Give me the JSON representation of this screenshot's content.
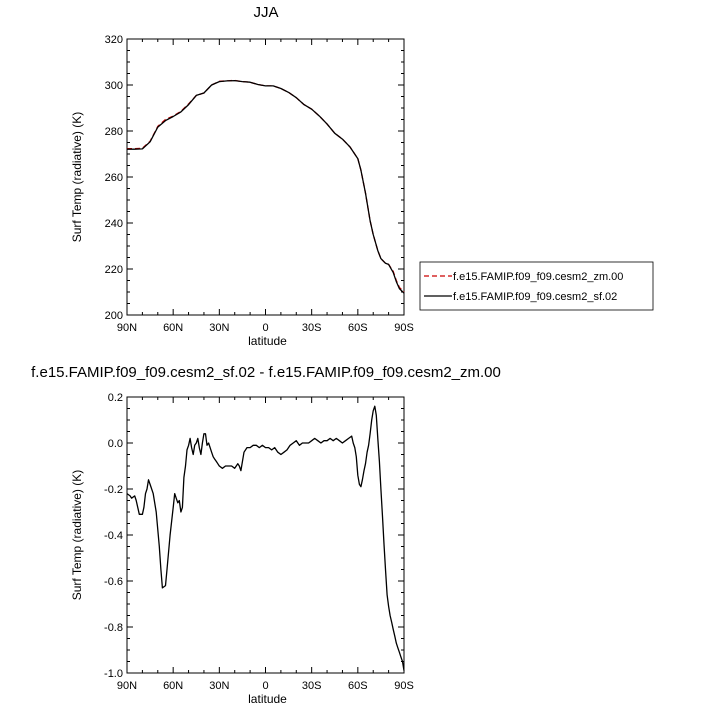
{
  "chart_data": [
    {
      "type": "line",
      "title": "JJA",
      "xlabel": "latitude",
      "ylabel": "Surf Temp (radiative) (K)",
      "xlim": [
        90,
        -90
      ],
      "ylim": [
        200,
        320
      ],
      "xtick_values": [
        90,
        60,
        30,
        0,
        -30,
        -60,
        -90
      ],
      "xtick_labels": [
        "90N",
        "60N",
        "30N",
        "0",
        "30S",
        "60S",
        "90S"
      ],
      "yticks": [
        200,
        220,
        240,
        260,
        280,
        300,
        320
      ],
      "grid": false,
      "legend": "right",
      "x": [
        90,
        85,
        80,
        75,
        70,
        65,
        60,
        55,
        50,
        45,
        40,
        35,
        30,
        25,
        20,
        15,
        10,
        5,
        0,
        -5,
        -10,
        -15,
        -20,
        -25,
        -30,
        -35,
        -40,
        -45,
        -50,
        -55,
        -60,
        -62,
        -65,
        -68,
        -70,
        -73,
        -75,
        -78,
        -80,
        -83,
        -85,
        -87,
        -90
      ],
      "series": [
        {
          "name": "f.e15.FAMIP.f09_f09.cesm2_zm.00",
          "color": "#cc0000",
          "dash": "dashed",
          "values": [
            272.3,
            272.3,
            272.5,
            275.5,
            282,
            285,
            286.5,
            288.5,
            291.8,
            295.5,
            296.5,
            300,
            301.6,
            301.8,
            302,
            301.5,
            301.2,
            300.2,
            299.6,
            299.6,
            298.5,
            296.8,
            294.5,
            291.5,
            289.5,
            286.5,
            283,
            279,
            276.5,
            273,
            268,
            263,
            253,
            241,
            235,
            228,
            224.5,
            222.5,
            222,
            219,
            215,
            212,
            210
          ]
        },
        {
          "name": "f.e15.FAMIP.f09_f09.cesm2_sf.02",
          "color": "#000000",
          "dash": "solid",
          "values": [
            272.1,
            272.1,
            272.2,
            275.3,
            281.7,
            284.5,
            286.3,
            288.3,
            291.5,
            295.5,
            296.5,
            300,
            301.5,
            301.8,
            301.9,
            301.5,
            301.2,
            300.2,
            299.6,
            299.6,
            298.5,
            296.8,
            294.5,
            291.5,
            289.5,
            286.5,
            283,
            279,
            276.5,
            273,
            268,
            263,
            253,
            241,
            235,
            228,
            224.5,
            222.5,
            222,
            218.5,
            214.5,
            211.5,
            209.5
          ]
        }
      ]
    },
    {
      "type": "line",
      "title": "f.e15.FAMIP.f09_f09.cesm2_sf.02 - f.e15.FAMIP.f09_f09.cesm2_zm.00",
      "xlabel": "latitude",
      "ylabel": "Surf Temp (radiative) (K)",
      "xlim": [
        90,
        -90
      ],
      "ylim": [
        -1.0,
        0.2
      ],
      "xtick_values": [
        90,
        60,
        30,
        0,
        -30,
        -60,
        -90
      ],
      "xtick_labels": [
        "90N",
        "60N",
        "30N",
        "0",
        "30S",
        "60S",
        "90S"
      ],
      "yticks": [
        -1.0,
        -0.8,
        -0.6,
        -0.4,
        -0.2,
        0.0,
        0.2
      ],
      "ytick_labels": [
        "-1.0",
        "-0.8",
        "-0.6",
        "-0.4",
        "-0.2",
        "0.0",
        "0.2"
      ],
      "grid": false,
      "x": [
        90,
        88,
        87,
        85,
        84,
        82,
        80,
        79,
        78,
        77,
        76,
        75,
        73,
        71,
        69,
        68,
        67,
        65,
        64,
        62,
        60,
        59,
        58,
        57,
        56,
        55,
        54,
        53,
        52,
        51,
        50,
        49,
        48,
        47,
        46,
        45,
        44,
        43,
        42,
        41,
        40,
        39,
        38,
        37,
        36,
        35,
        34,
        33,
        32,
        31,
        30,
        28,
        26,
        24,
        22,
        20,
        18,
        17,
        16,
        14,
        12,
        10,
        8,
        6,
        4,
        2,
        0,
        -2,
        -4,
        -6,
        -8,
        -10,
        -12,
        -14,
        -16,
        -18,
        -20,
        -22,
        -24,
        -26,
        -28,
        -30,
        -32,
        -34,
        -36,
        -38,
        -40,
        -42,
        -44,
        -46,
        -48,
        -50,
        -52,
        -54,
        -56,
        -57,
        -58,
        -59,
        -60,
        -61,
        -62,
        -63,
        -64,
        -65,
        -66,
        -67,
        -68,
        -69,
        -70,
        -71,
        -72,
        -73,
        -74,
        -75,
        -76,
        -77,
        -78,
        -79,
        -80,
        -81,
        -82,
        -83,
        -84,
        -85,
        -86,
        -87,
        -88,
        -89,
        -90
      ],
      "series": [
        {
          "name": "",
          "color": "#000000",
          "dash": "solid",
          "values": [
            -0.22,
            -0.23,
            -0.24,
            -0.23,
            -0.25,
            -0.31,
            -0.31,
            -0.28,
            -0.22,
            -0.2,
            -0.16,
            -0.18,
            -0.22,
            -0.3,
            -0.45,
            -0.55,
            -0.63,
            -0.62,
            -0.55,
            -0.4,
            -0.28,
            -0.22,
            -0.24,
            -0.26,
            -0.25,
            -0.3,
            -0.28,
            -0.15,
            -0.1,
            -0.03,
            -0.01,
            0.02,
            -0.02,
            -0.05,
            -0.01,
            0.0,
            0.02,
            -0.02,
            -0.05,
            0.0,
            0.04,
            0.04,
            -0.01,
            0.0,
            -0.02,
            -0.04,
            -0.06,
            -0.07,
            -0.08,
            -0.09,
            -0.1,
            -0.11,
            -0.1,
            -0.1,
            -0.1,
            -0.11,
            -0.09,
            -0.1,
            -0.12,
            -0.04,
            -0.02,
            -0.02,
            -0.01,
            -0.01,
            -0.02,
            -0.01,
            -0.02,
            -0.02,
            -0.03,
            -0.02,
            -0.04,
            -0.05,
            -0.04,
            -0.03,
            -0.01,
            0.0,
            0.01,
            -0.01,
            0.0,
            0.0,
            0.0,
            0.01,
            0.02,
            0.01,
            0.0,
            0.01,
            0.01,
            0.02,
            0.01,
            0.02,
            0.01,
            0.0,
            0.01,
            0.02,
            0.03,
            0.0,
            -0.02,
            -0.06,
            -0.14,
            -0.18,
            -0.19,
            -0.16,
            -0.12,
            -0.09,
            -0.04,
            -0.01,
            0.04,
            0.1,
            0.14,
            0.16,
            0.12,
            0.02,
            -0.08,
            -0.2,
            -0.32,
            -0.44,
            -0.55,
            -0.66,
            -0.71,
            -0.75,
            -0.78,
            -0.81,
            -0.84,
            -0.87,
            -0.89,
            -0.91,
            -0.93,
            -0.95,
            -0.99
          ]
        }
      ]
    }
  ]
}
